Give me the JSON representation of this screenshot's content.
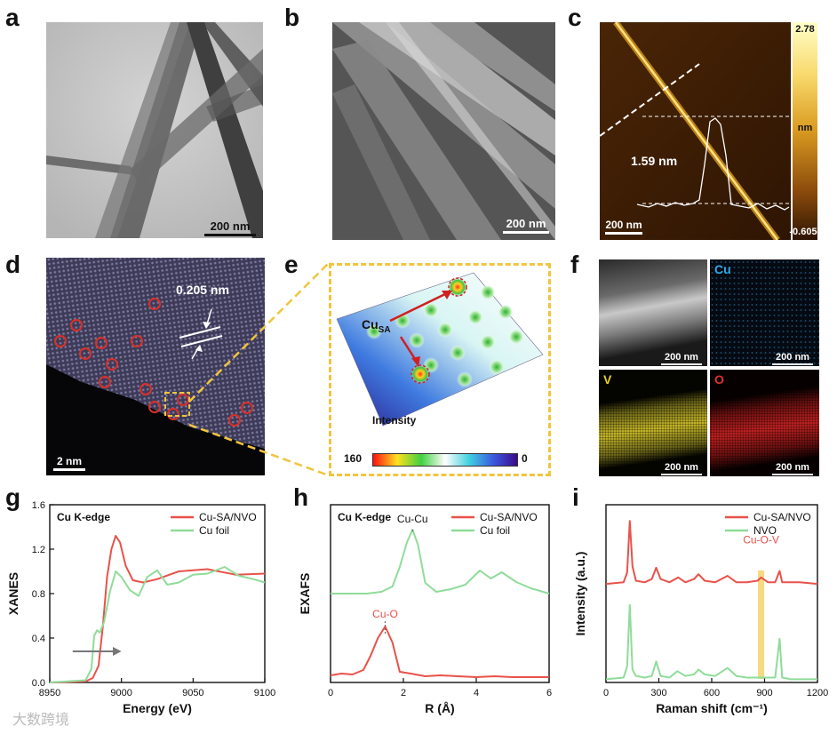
{
  "panels": {
    "a": {
      "label": "a",
      "scale": "200 nm"
    },
    "b": {
      "label": "b",
      "scale": "200 nm"
    },
    "c": {
      "label": "c",
      "scale": "200 nm",
      "height_profile": "1.59 nm",
      "colorbar_max": "2.78",
      "colorbar_unit": "nm",
      "colorbar_min": "-0.605"
    },
    "d": {
      "label": "d",
      "scale": "2 nm",
      "lattice": "0.205 nm"
    },
    "e": {
      "label": "e",
      "annotation_main": "Cu",
      "annotation_sub": "SA",
      "intensity_title": "Intensity",
      "intensity_max": "160",
      "intensity_min": "0"
    },
    "f": {
      "label": "f",
      "maps": [
        {
          "element": "",
          "scale": "200 nm"
        },
        {
          "element": "Cu",
          "scale": "200 nm"
        },
        {
          "element": "V",
          "scale": "200 nm"
        },
        {
          "element": "O",
          "scale": "200 nm"
        }
      ]
    },
    "g": {
      "label": "g"
    },
    "h": {
      "label": "h"
    },
    "i": {
      "label": "i"
    }
  },
  "watermark": "大数跨境",
  "colors": {
    "sample": "#e8524a",
    "reference": "#8fdc9a",
    "band": "#f3d36b",
    "cu_map": "#2aa8e8",
    "v_map": "#e5d22a",
    "o_map": "#e03030"
  },
  "chart_data": [
    {
      "type": "line",
      "panel": "g",
      "inset_label": "Cu K-edge",
      "xlabel": "Energy (eV)",
      "ylabel": "XANES",
      "xlim": [
        8950,
        9100
      ],
      "ylim": [
        0,
        1.6
      ],
      "xticks": [
        "8950",
        "9000",
        "9050",
        "9100"
      ],
      "yticks": [
        "0.0",
        "0.4",
        "0.8",
        "1.2",
        "1.6"
      ],
      "series": [
        {
          "name": "Cu-SA/NVO",
          "color": "#e8524a",
          "x": [
            8950,
            8975,
            8980,
            8984,
            8987,
            8990,
            8993,
            8996,
            8999,
            9003,
            9008,
            9015,
            9025,
            9040,
            9060,
            9080,
            9100
          ],
          "y": [
            0.0,
            0.01,
            0.04,
            0.15,
            0.5,
            0.95,
            1.2,
            1.32,
            1.26,
            1.05,
            0.92,
            0.9,
            0.93,
            1.0,
            1.02,
            0.97,
            0.98
          ]
        },
        {
          "name": "Cu foil",
          "color": "#8fdc9a",
          "x": [
            8950,
            8975,
            8979,
            8981,
            8983,
            8985,
            8988,
            8992,
            8996,
            9000,
            9006,
            9012,
            9018,
            9025,
            9032,
            9040,
            9050,
            9060,
            9072,
            9082,
            9092,
            9100
          ],
          "y": [
            0.0,
            0.02,
            0.12,
            0.42,
            0.47,
            0.45,
            0.55,
            0.82,
            1.0,
            0.95,
            0.83,
            0.78,
            0.95,
            1.01,
            0.88,
            0.9,
            0.97,
            0.98,
            1.04,
            0.96,
            0.93,
            0.9
          ]
        }
      ],
      "annotations": [
        "arrow right near edge"
      ]
    },
    {
      "type": "line",
      "panel": "h",
      "inset_label": "Cu K-edge",
      "xlabel": "R (Å)",
      "ylabel": "EXAFS",
      "xlim": [
        0,
        6
      ],
      "xticks": [
        "0",
        "2",
        "4",
        "6"
      ],
      "peak_labels": [
        "Cu-Cu",
        "Cu-O"
      ],
      "series": [
        {
          "name": "Cu-SA/NVO",
          "color": "#e8524a",
          "x": [
            0,
            0.3,
            0.6,
            0.9,
            1.1,
            1.3,
            1.5,
            1.7,
            1.9,
            2.2,
            2.6,
            3.0,
            3.5,
            4.0,
            4.5,
            5.0,
            5.5,
            6.0
          ],
          "y": [
            0.08,
            0.1,
            0.09,
            0.14,
            0.3,
            0.5,
            0.63,
            0.45,
            0.12,
            0.1,
            0.07,
            0.08,
            0.07,
            0.06,
            0.07,
            0.06,
            0.06,
            0.06
          ]
        },
        {
          "name": "Cu foil",
          "color": "#8fdc9a",
          "x": [
            0,
            0.5,
            1.0,
            1.4,
            1.7,
            1.9,
            2.1,
            2.25,
            2.4,
            2.6,
            2.9,
            3.3,
            3.7,
            4.1,
            4.4,
            4.7,
            5.1,
            5.5,
            6.0
          ],
          "y": [
            1.0,
            1.0,
            1.0,
            1.02,
            1.08,
            1.3,
            1.58,
            1.72,
            1.55,
            1.12,
            1.02,
            1.05,
            1.1,
            1.26,
            1.17,
            1.24,
            1.13,
            1.06,
            1.0
          ]
        }
      ]
    },
    {
      "type": "line",
      "panel": "i",
      "xlabel": "Raman shift (cm⁻¹)",
      "ylabel": "Intensity (a.u.)",
      "xlim": [
        0,
        1200
      ],
      "xticks": [
        "0",
        "300",
        "600",
        "900",
        "1200"
      ],
      "band_label": "Cu-O-V",
      "band_center": 880,
      "series": [
        {
          "name": "Cu-SA/NVO",
          "color": "#e8524a",
          "x": [
            0,
            100,
            120,
            135,
            150,
            170,
            220,
            260,
            285,
            310,
            360,
            410,
            450,
            500,
            525,
            560,
            620,
            690,
            740,
            800,
            860,
            880,
            920,
            960,
            985,
            1000,
            1050,
            1100,
            1200
          ],
          "y": [
            0.61,
            0.62,
            0.68,
            1.0,
            0.72,
            0.63,
            0.62,
            0.64,
            0.71,
            0.64,
            0.62,
            0.65,
            0.62,
            0.64,
            0.67,
            0.63,
            0.62,
            0.66,
            0.62,
            0.62,
            0.63,
            0.65,
            0.62,
            0.62,
            0.69,
            0.62,
            0.62,
            0.62,
            0.61
          ]
        },
        {
          "name": "NVO",
          "color": "#8fdc9a",
          "x": [
            0,
            100,
            120,
            135,
            150,
            170,
            220,
            260,
            285,
            310,
            360,
            405,
            450,
            500,
            525,
            560,
            620,
            690,
            740,
            800,
            860,
            880,
            920,
            960,
            985,
            1000,
            1050,
            1100,
            1200
          ],
          "y": [
            0.02,
            0.03,
            0.1,
            0.48,
            0.08,
            0.04,
            0.03,
            0.04,
            0.13,
            0.04,
            0.03,
            0.07,
            0.04,
            0.05,
            0.08,
            0.05,
            0.04,
            0.09,
            0.04,
            0.03,
            0.03,
            0.03,
            0.03,
            0.03,
            0.27,
            0.03,
            0.02,
            0.02,
            0.02
          ]
        }
      ]
    }
  ]
}
